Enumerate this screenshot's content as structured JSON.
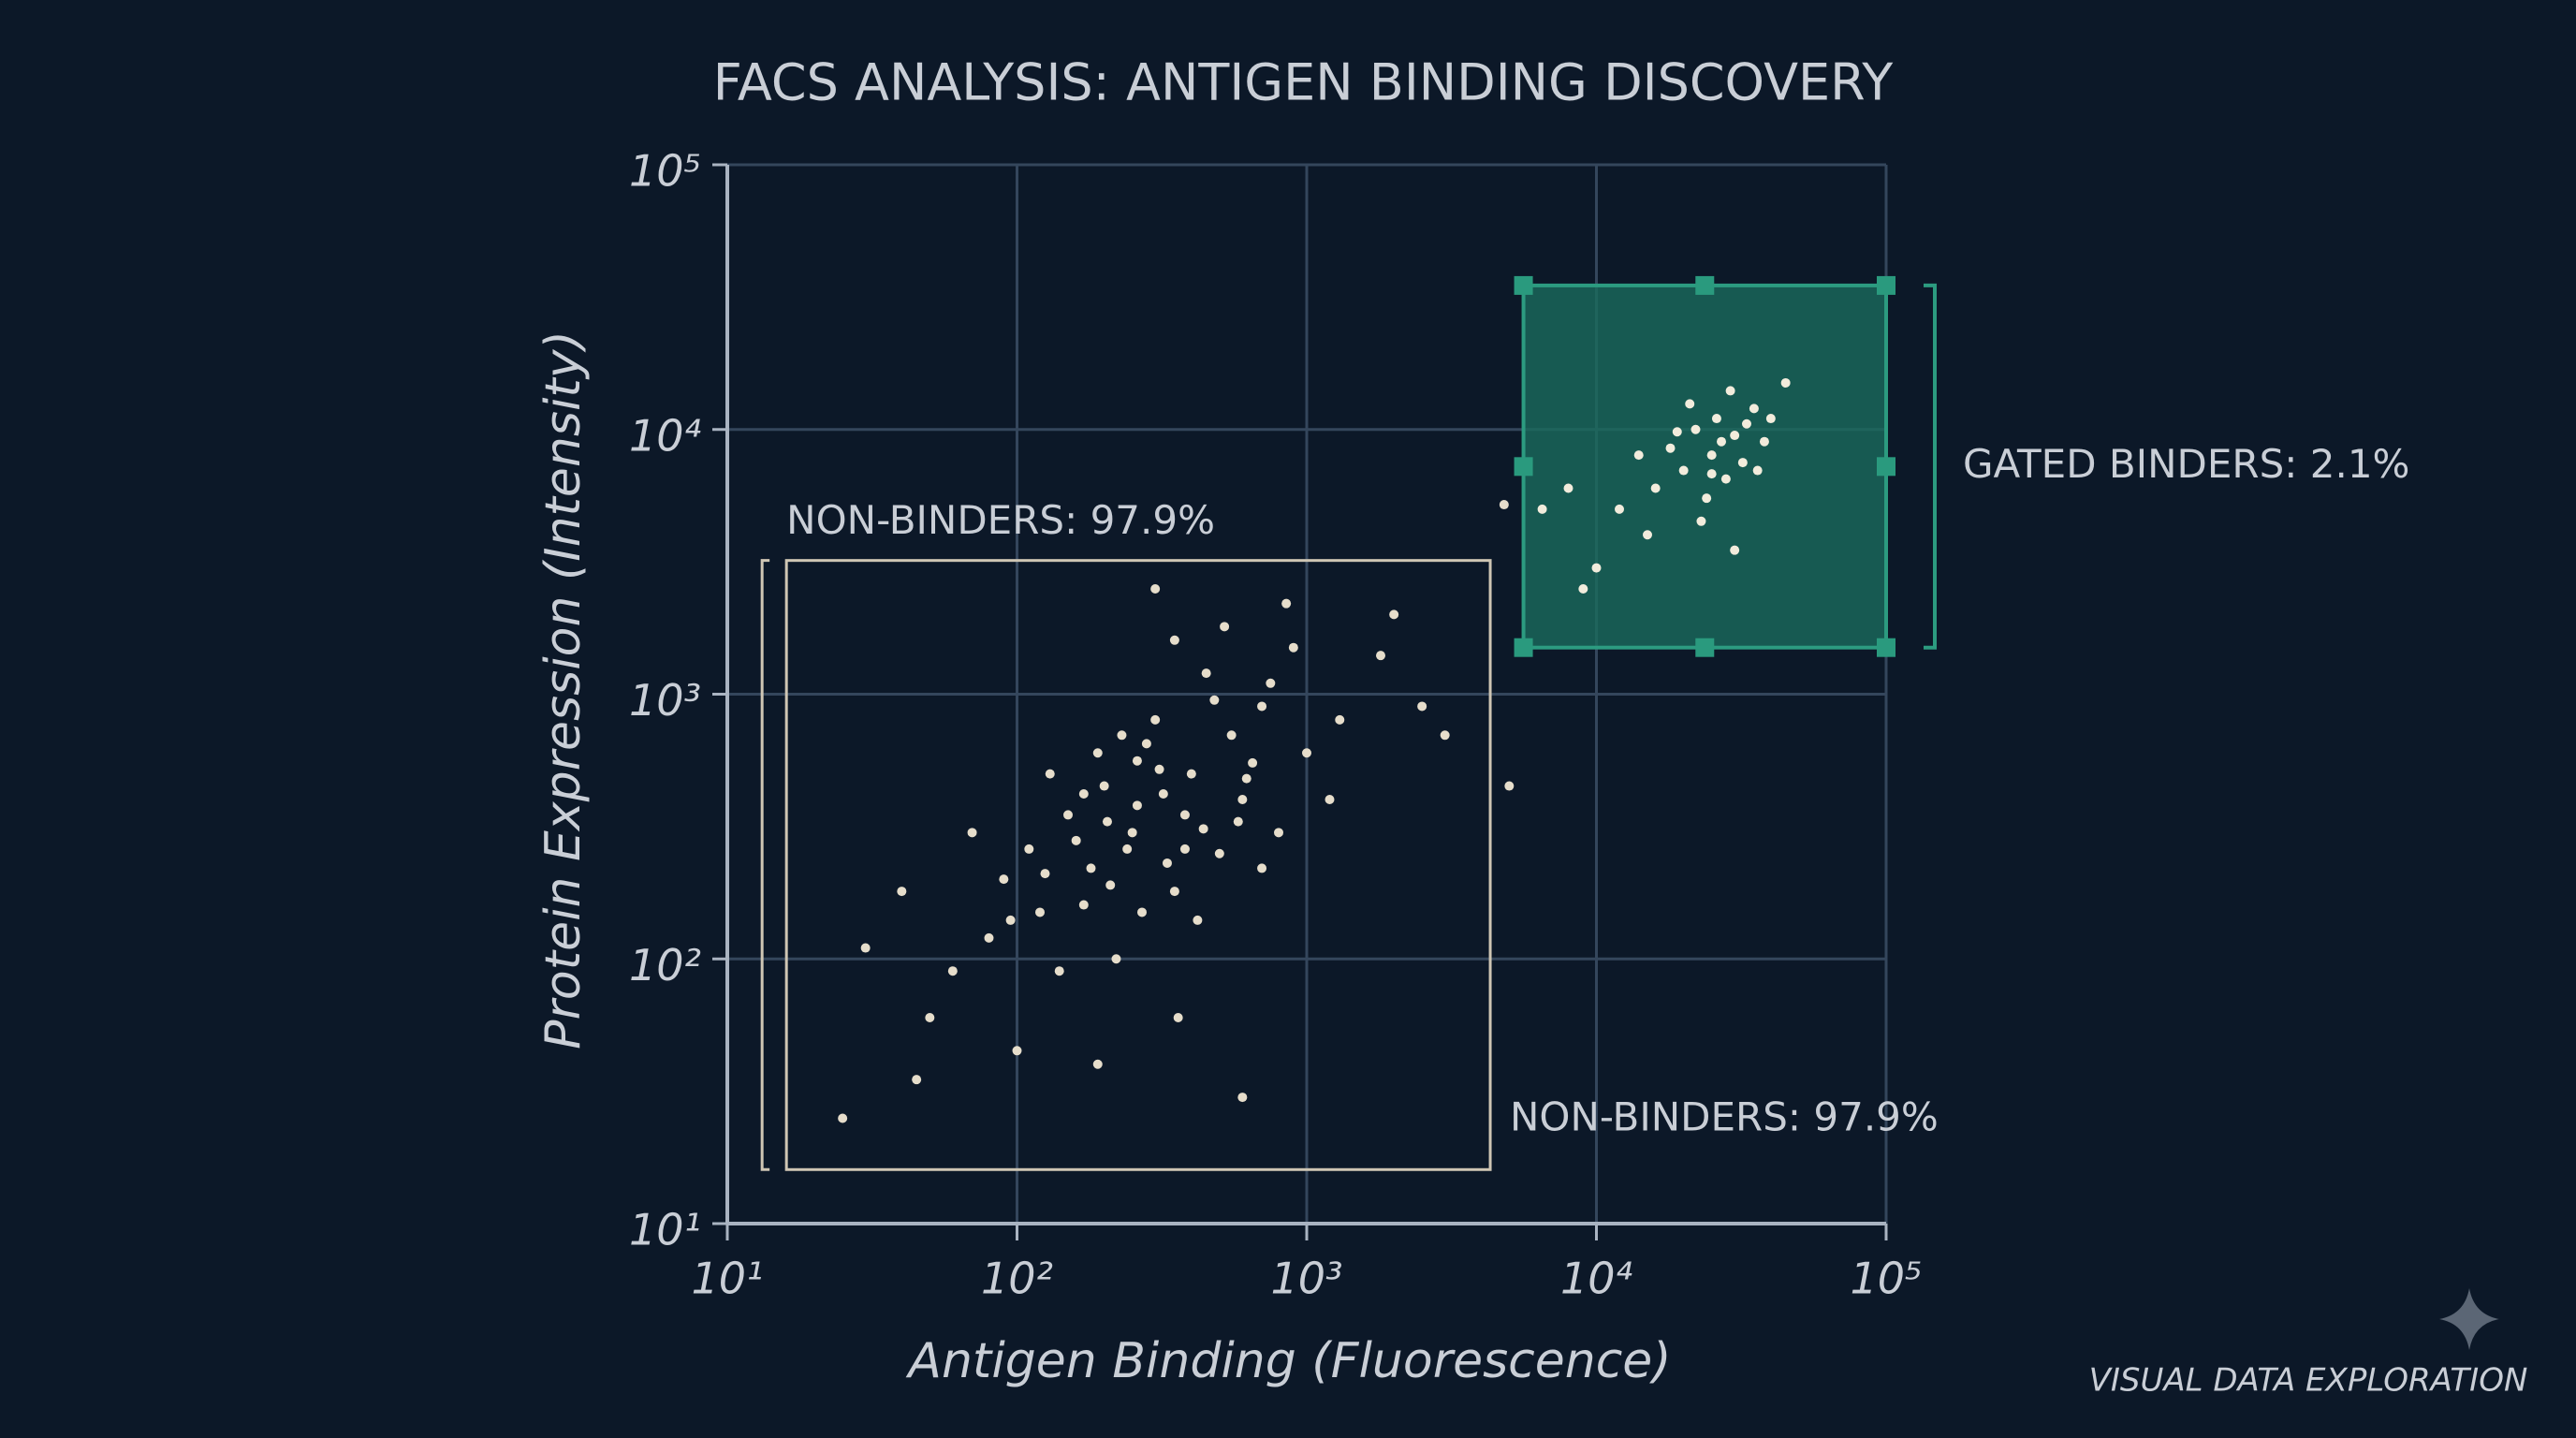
{
  "chart_data": {
    "type": "scatter",
    "title": "FACS ANALYSIS: ANTIGEN BINDING DISCOVERY",
    "x_label": "Antigen Binding (Fluorescence)",
    "y_label": "Protein Expression (Intensity)",
    "xscale": "log",
    "yscale": "log",
    "grid": true,
    "xlim": [
      10,
      100000
    ],
    "ylim": [
      10,
      100000
    ],
    "xticks": [
      {
        "value": 10,
        "label": "10¹"
      },
      {
        "value": 100,
        "label": "10²"
      },
      {
        "value": 1000,
        "label": "10³"
      },
      {
        "value": 10000,
        "label": "10⁴"
      },
      {
        "value": 100000,
        "label": "10⁵"
      }
    ],
    "yticks": [
      {
        "value": 10,
        "label": "10¹"
      },
      {
        "value": 100,
        "label": "10²"
      },
      {
        "value": 1000,
        "label": "10³"
      },
      {
        "value": 10000,
        "label": "10⁴"
      },
      {
        "value": 100000,
        "label": "10⁵"
      }
    ],
    "series": [
      {
        "color": "#e6ddcb",
        "x": [
          250,
          180,
          400,
          120,
          600,
          300,
          90,
          500,
          200,
          350,
          150,
          700,
          80,
          1000,
          450,
          220,
          130,
          800,
          60,
          280,
          380,
          170,
          550,
          240,
          320,
          110,
          900,
          70,
          1300,
          420,
          190,
          650,
          260,
          140,
          50,
          1800,
          330,
          480,
          210,
          95,
          750,
          310,
          160,
          580,
          230,
          40,
          1200,
          360,
          270,
          520,
          100,
          2500,
          190,
          850,
          300,
          30,
          440,
          620,
          205,
          125,
          380,
          260,
          170,
          700,
          45,
          600,
          2000,
          3000,
          25,
          350,
          4800,
          5000
        ],
        "values": [
          300,
          220,
          500,
          150,
          400,
          800,
          200,
          250,
          450,
          180,
          350,
          900,
          120,
          600,
          1200,
          100,
          500,
          300,
          90,
          650,
          350,
          160,
          700,
          260,
          420,
          260,
          1500,
          300,
          800,
          140,
          600,
          550,
          380,
          90,
          60,
          1400,
          230,
          950,
          190,
          140,
          1100,
          520,
          280,
          330,
          700,
          180,
          400,
          60,
          150,
          1800,
          45,
          900,
          40,
          2200,
          2500,
          110,
          310,
          480,
          330,
          210,
          260,
          560,
          420,
          220,
          35,
          30,
          2000,
          700,
          25,
          1600,
          5200,
          450
        ]
      },
      {
        "color": "#f2ecdc",
        "x": [
          25000,
          20000,
          30000,
          22000,
          28000,
          35000,
          18000,
          26000,
          32000,
          24000,
          21000,
          38000,
          16000,
          29000,
          40000,
          23000,
          15000,
          30000,
          45000,
          12000,
          10000,
          8000,
          6500,
          9000,
          27000,
          19000,
          33000,
          25000,
          36000,
          14000
        ],
        "values": [
          8000,
          7000,
          9500,
          10000,
          6500,
          12000,
          8500,
          11000,
          7500,
          5500,
          12500,
          9000,
          6000,
          14000,
          11000,
          4500,
          4000,
          3500,
          15000,
          5000,
          3000,
          6000,
          5000,
          2500,
          9000,
          9800,
          10500,
          6800,
          7000,
          8000
        ]
      }
    ],
    "gates": [
      {
        "label": "NON-BINDERS: 97.9%",
        "xlim": [
          16,
          4300
        ],
        "ylim": [
          16,
          3200
        ]
      },
      {
        "label": "GATED BINDERS: 2.1%",
        "xlim": [
          5600,
          100000
        ],
        "ylim": [
          1500,
          35000
        ]
      }
    ],
    "annotations": [
      "NON-BINDERS: 97.9%"
    ],
    "footer": "VISUAL DATA EXPLORATION"
  }
}
